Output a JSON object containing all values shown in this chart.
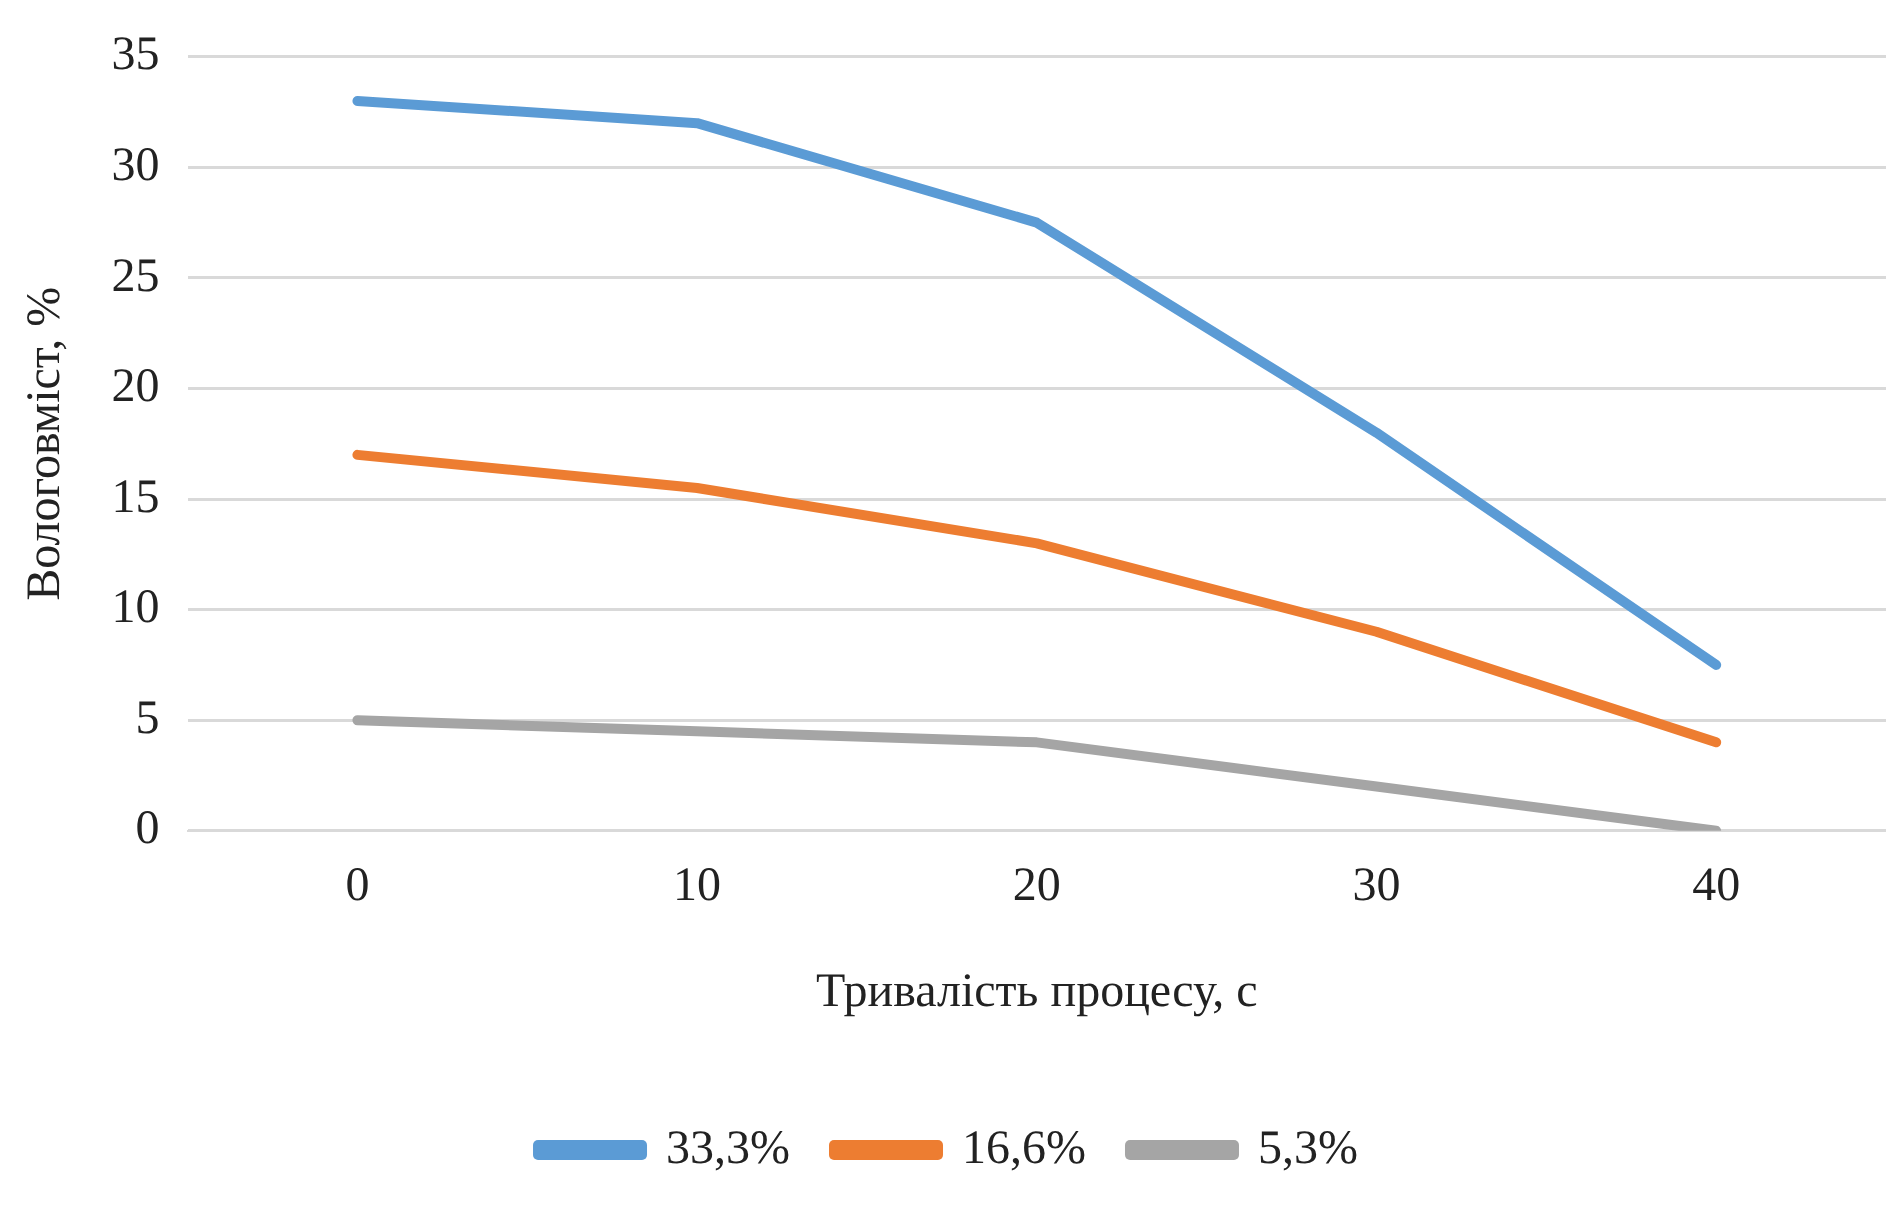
{
  "chart_data": {
    "type": "line",
    "xlabel": "Тривалість процесу, с",
    "ylabel": "Вологовміст, %",
    "categories": [
      "0",
      "10",
      "20",
      "30",
      "40"
    ],
    "series": [
      {
        "name": "33,3%",
        "color": "#5b9bd5",
        "values": [
          33,
          32,
          27.5,
          18,
          7.5
        ]
      },
      {
        "name": "16,6%",
        "color": "#ed7d31",
        "values": [
          17,
          15.5,
          13,
          9,
          4
        ]
      },
      {
        "name": "5,3%",
        "color": "#a5a5a5",
        "values": [
          5,
          4.5,
          4,
          2,
          0
        ]
      }
    ],
    "ylim": [
      0,
      35
    ],
    "yticks": [
      0,
      5,
      10,
      15,
      20,
      25,
      30,
      35
    ],
    "grid": "y",
    "legend": "bottom",
    "marker": "none",
    "line_style": "solid"
  }
}
